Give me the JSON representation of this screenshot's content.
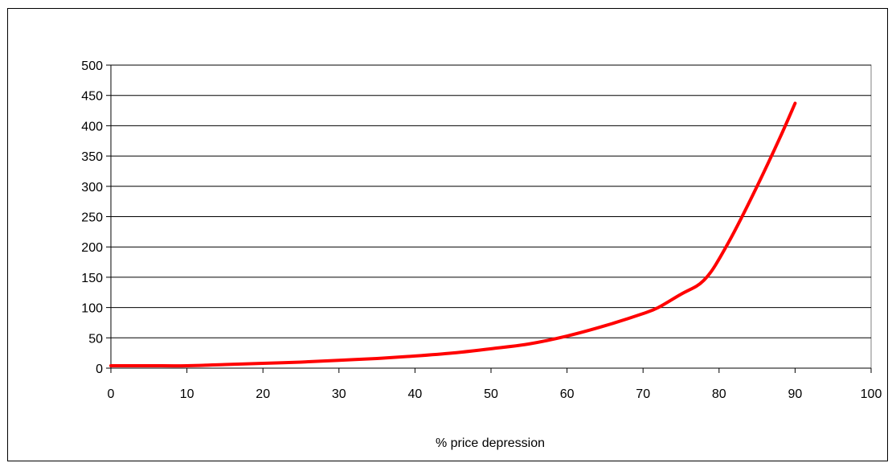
{
  "chart_data": {
    "type": "line",
    "title": "",
    "xlabel": "% price depression",
    "ylabel": "",
    "xlim": [
      0,
      100
    ],
    "ylim": [
      0,
      500
    ],
    "x_ticks": [
      0,
      10,
      20,
      30,
      40,
      50,
      60,
      70,
      80,
      90,
      100
    ],
    "y_ticks": [
      0,
      50,
      100,
      150,
      200,
      250,
      300,
      350,
      400,
      450,
      500
    ],
    "grid": "horizontal",
    "legend": "none",
    "series": [
      {
        "color": "#ff0000",
        "x": [
          0,
          5,
          10,
          15,
          20,
          25,
          30,
          35,
          40,
          45,
          50,
          55,
          60,
          65,
          70,
          72,
          75,
          77,
          78,
          79,
          80,
          82,
          85,
          88,
          90
        ],
        "y": [
          4,
          4,
          4,
          6,
          8,
          10,
          13,
          16,
          20,
          25,
          32,
          40,
          53,
          70,
          90,
          100,
          122,
          135,
          145,
          160,
          180,
          225,
          300,
          380,
          437
        ]
      }
    ]
  }
}
